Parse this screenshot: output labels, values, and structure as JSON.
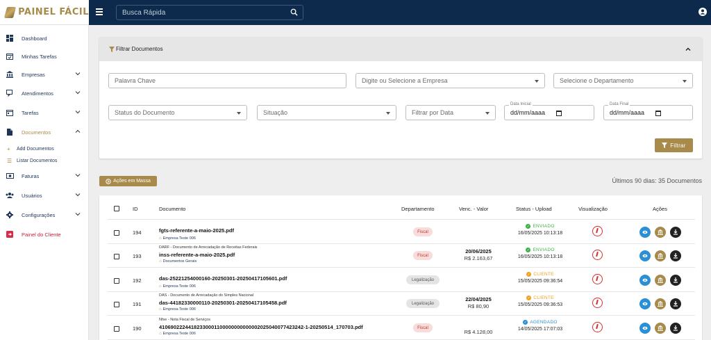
{
  "app": {
    "name": "PAINEL FÁCIL"
  },
  "header": {
    "search_placeholder": "Busca Rápida"
  },
  "sidebar": {
    "items": [
      {
        "label": "Dashboard",
        "icon": "dashboard-icon"
      },
      {
        "label": "Minhas Tarefas",
        "icon": "calendar-check-icon"
      },
      {
        "label": "Empresas",
        "icon": "bank-icon"
      },
      {
        "label": "Atendimentos",
        "icon": "chat-icon"
      },
      {
        "label": "Tarefas",
        "icon": "calendar-icon"
      },
      {
        "label": "Documentos",
        "icon": "document-icon"
      },
      {
        "label": "Faturas",
        "icon": "money-icon"
      },
      {
        "label": "Usuários",
        "icon": "users-icon"
      },
      {
        "label": "Configurações",
        "icon": "gear-icon"
      },
      {
        "label": "Painel do Cliente",
        "icon": "exit-icon"
      }
    ],
    "subitems": [
      {
        "label": "Add Documentos",
        "glyph": "+"
      },
      {
        "label": "Listar Documentos",
        "glyph": "☰"
      }
    ]
  },
  "filters": {
    "title": "Filtrar Documentos",
    "keyword_placeholder": "Palavra Chave",
    "company_placeholder": "Digite ou Selecione a Empresa",
    "department_placeholder": "Selecione o Departamento",
    "doc_status_placeholder": "Status do Documento",
    "situation_placeholder": "Situação",
    "date_filter_placeholder": "Filtrar por Data",
    "start_date_label": "Data Inicial",
    "end_date_label": "Data Final",
    "date_format": "dd/mm/aaaa",
    "filter_button": "Filtrar"
  },
  "list": {
    "mass_actions_button": "Ações em Massa",
    "summary": "Últimos 90 dias: 35 Documentos",
    "columns": [
      "ID",
      "Documento",
      "Departamento",
      "Venc. - Valor",
      "Status - Upload",
      "Visualização",
      "Ações"
    ],
    "rows": [
      {
        "id": "194",
        "desc": "",
        "name": "fgts-referente-a-maio-2025.pdf",
        "company": "Empresa Teste 006",
        "department": "Fiscal",
        "due": "",
        "value": "",
        "status": "ENVIADO",
        "status_color": "#3fae49",
        "upload": "16/05/2025 10:13:18"
      },
      {
        "id": "193",
        "desc": "DARF - Documento de Arrecadação de Receitas Federais",
        "name": "inss-referente-a-maio-2025.pdf",
        "company": "Documentos Gerais",
        "department": "Fiscal",
        "due": "20/06/2025",
        "value": "R$ 2.163,67",
        "status": "ENVIADO",
        "status_color": "#3fae49",
        "upload": "16/05/2025 10:13:18"
      },
      {
        "id": "192",
        "desc": "",
        "name": "das-25221254000160-20250301-20250417105601.pdf",
        "company": "Empresa Teste 006",
        "department": "Legalização",
        "due": "",
        "value": "",
        "status": "CLIENTE",
        "status_color": "#f0a020",
        "upload": "15/05/2025 09:36:54"
      },
      {
        "id": "191",
        "desc": "DAS - Documento de Arrecadação do Simples Nacional",
        "name": "das-44182330000110-20250301-20250417105458.pdf",
        "company": "Empresa Teste 006",
        "department": "Legalização",
        "due": "22/04/2025",
        "value": "R$ 80,90",
        "status": "CLIENTE",
        "status_color": "#f0a020",
        "upload": "15/05/2025 09:36:53"
      },
      {
        "id": "190",
        "desc": "Nfse - Nota Fiscal de Serviços",
        "name": "41069022244182330001100000000000002025040077423242-1-20250514_170703.pdf",
        "company": "Empresa Teste 006",
        "department": "Fiscal",
        "due": "",
        "value": "R$ 4.128,00",
        "status": "AGENDADO",
        "status_color": "#2b8fd6",
        "upload": "14/05/2025 17:07:03"
      }
    ]
  }
}
